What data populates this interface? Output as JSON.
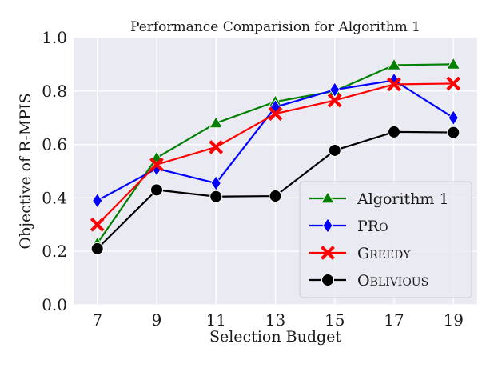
{
  "chart_data": {
    "type": "line",
    "title": "Performance Comparision for Algorithm 1",
    "xlabel": "Selection Budget",
    "ylabel": "Objective of R-MPIS",
    "categories": [
      7,
      9,
      11,
      13,
      15,
      17,
      19
    ],
    "x_tick_labels": [
      "7",
      "9",
      "11",
      "13",
      "15",
      "17",
      "19"
    ],
    "xlim": [
      6.2,
      19.8
    ],
    "ylim": [
      0.0,
      1.0
    ],
    "y_ticks": [
      0.0,
      0.2,
      0.4,
      0.6,
      0.8,
      1.0
    ],
    "y_tick_labels": [
      "0.0",
      "0.2",
      "0.4",
      "0.6",
      "0.8",
      "1.0"
    ],
    "grid": true,
    "legend_position": "bottom-right",
    "series": [
      {
        "name": "Algorithm 1",
        "color": "#008000",
        "marker": "triangle",
        "values": [
          0.23,
          0.55,
          0.68,
          0.76,
          0.8,
          0.897,
          0.9
        ]
      },
      {
        "name": "PRo",
        "color": "#0000ff",
        "marker": "diamond",
        "values": [
          0.39,
          0.51,
          0.455,
          0.74,
          0.805,
          0.84,
          0.7
        ]
      },
      {
        "name": "Greedy",
        "color": "#ff0000",
        "marker": "x",
        "values": [
          0.3,
          0.525,
          0.59,
          0.715,
          0.765,
          0.825,
          0.828
        ]
      },
      {
        "name": "Oblivious",
        "color": "#000000",
        "marker": "circle",
        "values": [
          0.21,
          0.43,
          0.405,
          0.407,
          0.578,
          0.647,
          0.645
        ]
      }
    ],
    "legend_labels": [
      {
        "first": "Algorithm 1",
        "rest": ""
      },
      {
        "first": "PR",
        "rest": "O"
      },
      {
        "first": "G",
        "rest": "REEDY"
      },
      {
        "first": "O",
        "rest": "BLIVIOUS"
      }
    ]
  }
}
